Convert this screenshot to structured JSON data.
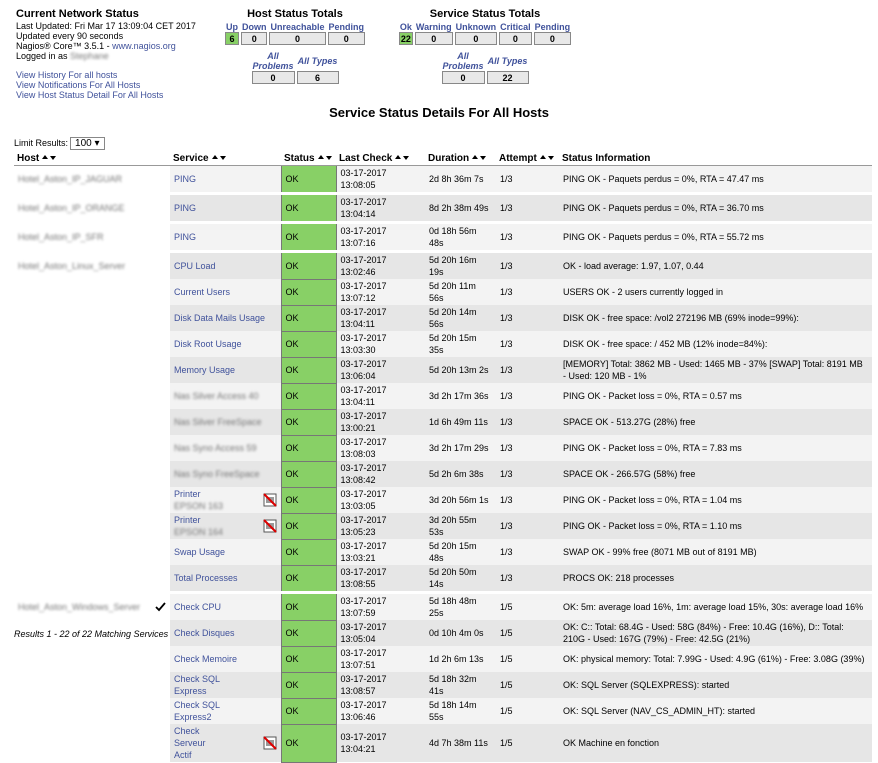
{
  "header": {
    "title": "Current Network Status",
    "last_updated": "Last Updated: Fri Mar 17 13:09:04 CET 2017",
    "update_interval": "Updated every 90 seconds",
    "version": "Nagios® Core™ 3.5.1 - ",
    "version_link": "www.nagios.org",
    "logged_in": "Logged in as ",
    "user": "Stephane"
  },
  "links": [
    "View History For all hosts",
    "View Notifications For All Hosts",
    "View Host Status Detail For All Hosts"
  ],
  "host_totals": {
    "title": "Host Status Totals",
    "headers": [
      "Up",
      "Down",
      "Unreachable",
      "Pending"
    ],
    "values": [
      6,
      0,
      0,
      0
    ],
    "sub_headers": [
      "All Problems",
      "All Types"
    ],
    "sub_values": [
      0,
      6
    ]
  },
  "service_totals": {
    "title": "Service Status Totals",
    "headers": [
      "Ok",
      "Warning",
      "Unknown",
      "Critical",
      "Pending"
    ],
    "values": [
      22,
      0,
      0,
      0,
      0
    ],
    "sub_headers": [
      "All Problems",
      "All Types"
    ],
    "sub_values": [
      0,
      22
    ]
  },
  "page_title": "Service Status Details For All Hosts",
  "limit": {
    "label": "Limit Results:",
    "value": "100"
  },
  "table": {
    "columns": [
      "Host",
      "Service",
      "Status",
      "Last Check",
      "Duration",
      "Attempt",
      "Status Information"
    ],
    "rows": [
      {
        "host": "Hotel_Aston_IP_JAGUAR",
        "service": "PING",
        "status": "OK",
        "last_check": "03-17-2017 13:08:05",
        "duration": "2d 8h 36m 7s",
        "attempt": "1/3",
        "info": "PING OK - Paquets perdus = 0%, RTA = 47.47 ms"
      },
      {
        "host": "Hotel_Aston_IP_ORANGE",
        "service": "PING",
        "status": "OK",
        "last_check": "03-17-2017 13:04:14",
        "duration": "8d 2h 38m 49s",
        "attempt": "1/3",
        "info": "PING OK - Paquets perdus = 0%, RTA = 36.70 ms"
      },
      {
        "host": "Hotel_Aston_IP_SFR",
        "service": "PING",
        "status": "OK",
        "last_check": "03-17-2017 13:07:16",
        "duration": "0d 18h 56m 48s",
        "attempt": "1/3",
        "info": "PING OK - Paquets perdus = 0%, RTA = 55.72 ms"
      },
      {
        "host": "Hotel_Aston_Linux_Server",
        "service": "CPU Load",
        "status": "OK",
        "last_check": "03-17-2017 13:02:46",
        "duration": "5d 20h 16m 19s",
        "attempt": "1/3",
        "info": "OK - load average: 1.97, 1.07, 0.44"
      },
      {
        "service": "Current Users",
        "status": "OK",
        "last_check": "03-17-2017 13:07:12",
        "duration": "5d 20h 11m 56s",
        "attempt": "1/3",
        "info": "USERS OK - 2 users currently logged in"
      },
      {
        "service": "Disk Data Mails Usage",
        "status": "OK",
        "last_check": "03-17-2017 13:04:11",
        "duration": "5d 20h 14m 56s",
        "attempt": "1/3",
        "info": "DISK OK - free space: /vol2 272196 MB (69% inode=99%):"
      },
      {
        "service": "Disk Root Usage",
        "status": "OK",
        "last_check": "03-17-2017 13:03:30",
        "duration": "5d 20h 15m 35s",
        "attempt": "1/3",
        "info": "DISK OK - free space: / 452 MB (12% inode=84%):"
      },
      {
        "service": "Memory Usage",
        "status": "OK",
        "last_check": "03-17-2017 13:06:04",
        "duration": "5d 20h 13m 2s",
        "attempt": "1/3",
        "info": "[MEMORY] Total: 3862 MB - Used: 1465 MB - 37% [SWAP] Total: 8191 MB - Used: 120 MB - 1%"
      },
      {
        "service": "Nas Silver Access 40",
        "status": "OK",
        "last_check": "03-17-2017 13:04:11",
        "duration": "3d 2h 17m 36s",
        "attempt": "1/3",
        "info": "PING OK - Packet loss = 0%, RTA = 0.57 ms"
      },
      {
        "service": "Nas Silver FreeSpace",
        "status": "OK",
        "last_check": "03-17-2017 13:00:21",
        "duration": "1d 6h 49m 11s",
        "attempt": "1/3",
        "info": "SPACE OK - 513.27G (28%) free"
      },
      {
        "service": "Nas Syno Access 59",
        "status": "OK",
        "last_check": "03-17-2017 13:08:03",
        "duration": "3d 2h 17m 29s",
        "attempt": "1/3",
        "info": "PING OK - Packet loss = 0%, RTA = 7.83 ms"
      },
      {
        "service": "Nas Syno FreeSpace",
        "status": "OK",
        "last_check": "03-17-2017 13:08:42",
        "duration": "5d 2h 6m 38s",
        "attempt": "1/3",
        "info": "SPACE OK - 266.57G (58%) free"
      },
      {
        "service": [
          "Printer",
          "EPSON 163"
        ],
        "status": "OK",
        "last_check": "03-17-2017 13:03:05",
        "duration": "3d 20h 56m 1s",
        "attempt": "1/3",
        "info": "PING OK - Packet loss = 0%, RTA = 1.04 ms"
      },
      {
        "service": [
          "Printer",
          "EPSON 164"
        ],
        "status": "OK",
        "last_check": "03-17-2017 13:05:23",
        "duration": "3d 20h 55m 53s",
        "attempt": "1/3",
        "info": "PING OK - Packet loss = 0%, RTA = 1.10 ms"
      },
      {
        "service": "Swap Usage",
        "status": "OK",
        "last_check": "03-17-2017 13:03:21",
        "duration": "5d 20h 15m 48s",
        "attempt": "1/3",
        "info": "SWAP OK - 99% free (8071 MB out of 8191 MB)"
      },
      {
        "service": "Total Processes",
        "status": "OK",
        "last_check": "03-17-2017 13:08:55",
        "duration": "5d 20h 50m 14s",
        "attempt": "1/3",
        "info": "PROCS OK: 218 processes"
      },
      {
        "host": "Hotel_Aston_Windows_Server",
        "service": "Check CPU",
        "status": "OK",
        "last_check": "03-17-2017 13:07:59",
        "duration": "5d 18h 48m 25s",
        "attempt": "1/5",
        "info": "OK: 5m: average load 16%, 1m: average load 15%, 30s: average load 16%"
      },
      {
        "service": "Check Disques",
        "status": "OK",
        "last_check": "03-17-2017 13:05:04",
        "duration": "0d 10h 4m 0s",
        "attempt": "1/5",
        "info": "OK: C:: Total: 68.4G - Used: 58G (84%) - Free: 10.4G (16%), D:: Total: 210G - Used: 167G (79%) - Free: 42.5G (21%)"
      },
      {
        "service": "Check Memoire",
        "status": "OK",
        "last_check": "03-17-2017 13:07:51",
        "duration": "1d 2h 6m 13s",
        "attempt": "1/5",
        "info": "OK: physical memory: Total: 7.99G - Used: 4.9G (61%) - Free: 3.08G (39%)"
      },
      {
        "service": [
          "Check SQL",
          "Express"
        ],
        "status": "OK",
        "last_check": "03-17-2017 13:08:57",
        "duration": "5d 18h 32m 41s",
        "attempt": "1/5",
        "info": "OK: SQL Server (SQLEXPRESS): started"
      },
      {
        "service": [
          "Check SQL",
          "Express2"
        ],
        "status": "OK",
        "last_check": "03-17-2017 13:06:46",
        "duration": "5d 18h 14m 55s",
        "attempt": "1/5",
        "info": "OK: SQL Server (NAV_CS_ADMIN_HT): started"
      },
      {
        "service": [
          "Check",
          "Serveur",
          "Actif"
        ],
        "status": "OK",
        "last_check": "03-17-2017 13:04:21",
        "duration": "4d 7h 38m 11s",
        "attempt": "1/5",
        "info": "OK Machine en fonction"
      }
    ]
  },
  "footer": "Results 1 - 22 of 22 Matching Services"
}
